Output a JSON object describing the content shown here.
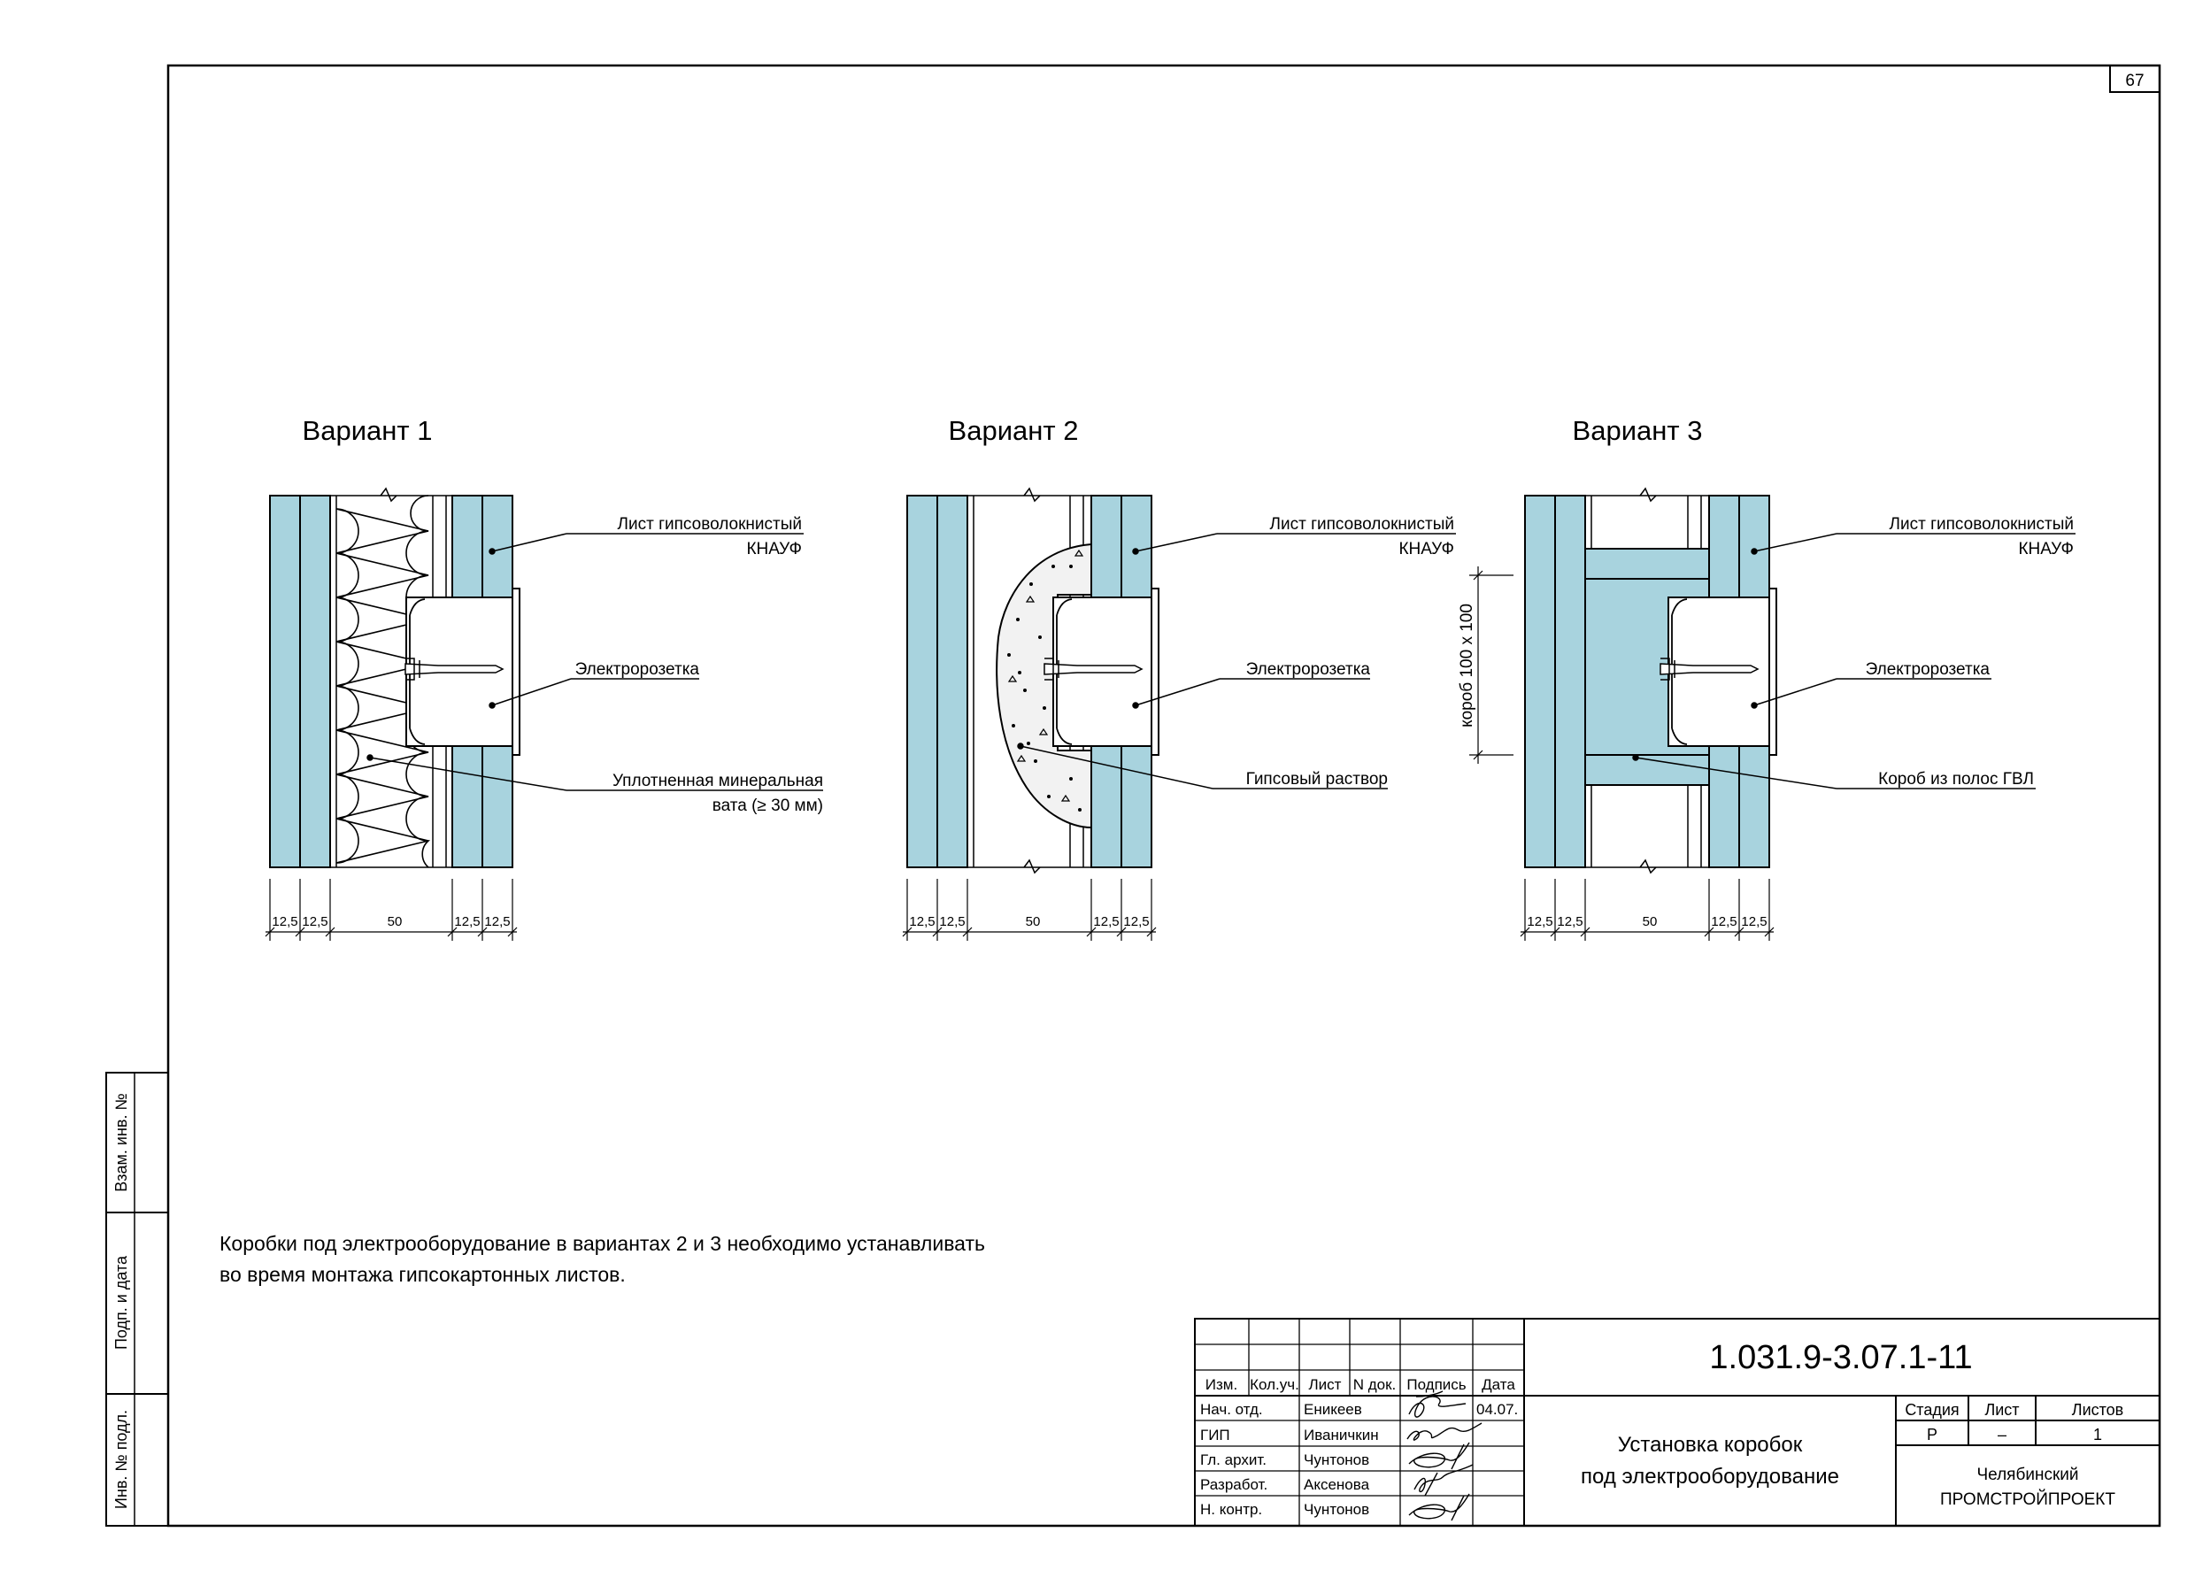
{
  "sheet": {
    "number": "67",
    "note_line1": "Коробки под электрооборудование в вариантах 2 и 3 необходимо устанавливать",
    "note_line2": "во время монтажа гипсокартонных листов."
  },
  "side_stamp": {
    "vzam": "Взам. инв. №",
    "podp": "Подп. и дата",
    "inv": "Инв. № подл."
  },
  "variants": [
    {
      "title": "Вариант 1",
      "labels": {
        "sheet_l1": "Лист гипсоволокнистый",
        "sheet_l2": "КНАУФ",
        "socket": "Электророзетка",
        "fill_l1": "Уплотненная минеральная",
        "fill_l2": "вата (≥ 30 мм)"
      },
      "dims": [
        "12,5",
        "12,5",
        "50",
        "12,5",
        "12,5"
      ]
    },
    {
      "title": "Вариант 2",
      "labels": {
        "sheet_l1": "Лист гипсоволокнистый",
        "sheet_l2": "КНАУФ",
        "socket": "Электророзетка",
        "fill_l1": "Гипсовый раствор",
        "fill_l2": ""
      },
      "dims": [
        "12,5",
        "12,5",
        "50",
        "12,5",
        "12,5"
      ]
    },
    {
      "title": "Вариант 3",
      "labels": {
        "sheet_l1": "Лист гипсоволокнистый",
        "sheet_l2": "КНАУФ",
        "socket": "Электророзетка",
        "fill_l1": "Короб из полос ГВЛ",
        "fill_l2": ""
      },
      "dims": [
        "12,5",
        "12,5",
        "50",
        "12,5",
        "12,5"
      ],
      "box_dim": "короб 100 х 100"
    }
  ],
  "title_block": {
    "code": "1.031.9-3.07.1-11",
    "title_line1": "Установка коробок",
    "title_line2": "под электрооборудование",
    "headers": [
      "Изм.",
      "Кол.уч.",
      "Лист",
      "N док.",
      "Подпись",
      "Дата"
    ],
    "rows": [
      {
        "role": "Нач. отд.",
        "name": "Еникеев",
        "date": "04.07."
      },
      {
        "role": "ГИП",
        "name": "Иваничкин",
        "date": ""
      },
      {
        "role": "Гл. архит.",
        "name": "Чунтонов",
        "date": ""
      },
      {
        "role": "Разработ.",
        "name": "Аксенова",
        "date": ""
      },
      {
        "role": "Н. контр.",
        "name": "Чунтонов",
        "date": ""
      }
    ],
    "stage_header": "Стадия",
    "sheet_header": "Лист",
    "sheets_header": "Листов",
    "stage": "Р",
    "sheet": "–",
    "sheets": "1",
    "org_line1": "Челябинский",
    "org_line2": "ПРОМСТРОЙПРОЕКТ"
  }
}
